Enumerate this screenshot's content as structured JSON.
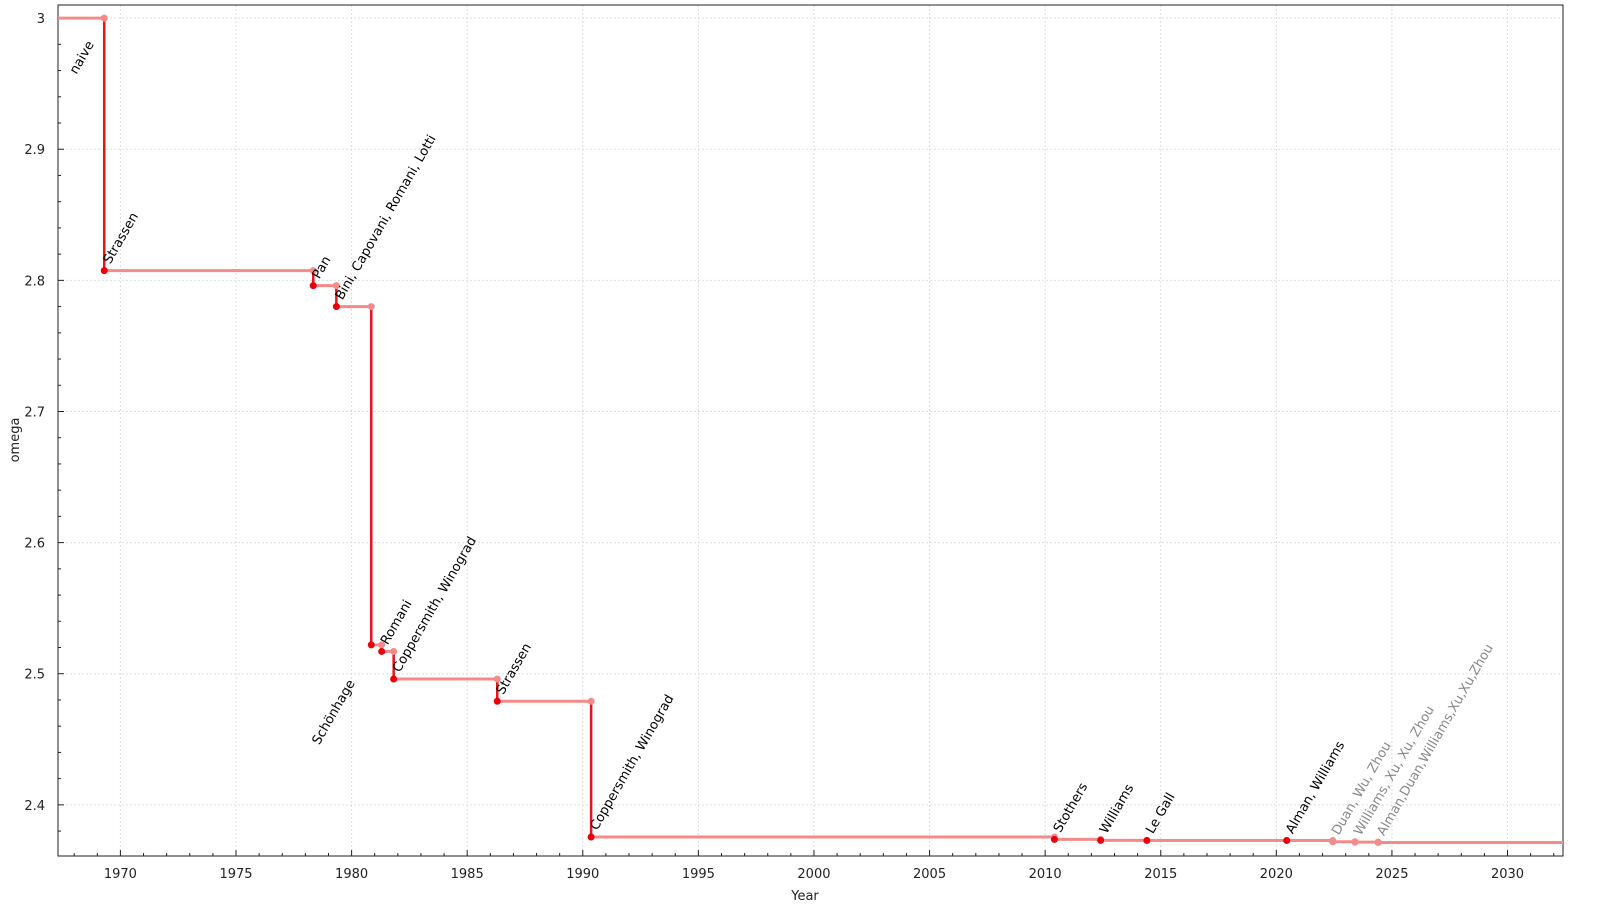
{
  "chart_data": {
    "type": "line",
    "subtype": "step",
    "xlabel": "Year",
    "ylabel": "omega",
    "xlim": [
      1967.3,
      2032.4
    ],
    "ylim": [
      2.361,
      3.01
    ],
    "xticks": [
      1970,
      1975,
      1980,
      1985,
      1990,
      1995,
      2000,
      2005,
      2010,
      2015,
      2020,
      2025,
      2030
    ],
    "yticks": [
      2.4,
      2.5,
      2.6,
      2.7,
      2.8,
      2.9,
      3
    ],
    "ytick_labels": [
      "2.4",
      "2.5",
      "2.6",
      "2.7",
      "2.8",
      "2.9",
      "3"
    ],
    "grid": true,
    "colors": {
      "vertical": "#e8141c",
      "horizontal": "#f58a8a",
      "point": "#e8000b",
      "corner_point": "#f58a8a",
      "label": "#000000",
      "dim_label": "#888888"
    },
    "points": [
      {
        "label": "naive",
        "x": 1967.3,
        "y": 3.0,
        "dim": false
      },
      {
        "label": "Strassen",
        "x": 1969.3,
        "y": 2.8074,
        "dim": false
      },
      {
        "label": "Pan",
        "x": 1978.34,
        "y": 2.796,
        "dim": false
      },
      {
        "label": "Bini, Capovani, Romani, Lotti",
        "x": 1979.34,
        "y": 2.78,
        "dim": false
      },
      {
        "label": "Schönhage",
        "x": 1980.85,
        "y": 2.522,
        "dim": false
      },
      {
        "label": "Romani",
        "x": 1981.3,
        "y": 2.517,
        "dim": false
      },
      {
        "label": "Coppersmith, Winograd",
        "x": 1981.82,
        "y": 2.496,
        "dim": false
      },
      {
        "label": "Strassen",
        "x": 1986.3,
        "y": 2.479,
        "dim": false
      },
      {
        "label": "Coppersmith, Winograd",
        "x": 1990.36,
        "y": 2.3755,
        "dim": false
      },
      {
        "label": "Stothers",
        "x": 2010.4,
        "y": 2.3737,
        "dim": false
      },
      {
        "label": "Williams",
        "x": 2012.4,
        "y": 2.3729,
        "dim": false
      },
      {
        "label": "Le Gall",
        "x": 2014.4,
        "y": 2.37286,
        "dim": false
      },
      {
        "label": "Alman, Williams",
        "x": 2020.45,
        "y": 2.37286,
        "dim": false
      },
      {
        "label": "Duan, Wu, Zhou",
        "x": 2022.44,
        "y": 2.371866,
        "dim": true
      },
      {
        "label": "Williams, Xu, Xu, Zhou",
        "x": 2023.4,
        "y": 2.371552,
        "dim": true
      },
      {
        "label": "Alman,Duan,Williams,Xu,Xu,Zhou",
        "x": 2024.4,
        "y": 2.371339,
        "dim": true
      }
    ]
  }
}
